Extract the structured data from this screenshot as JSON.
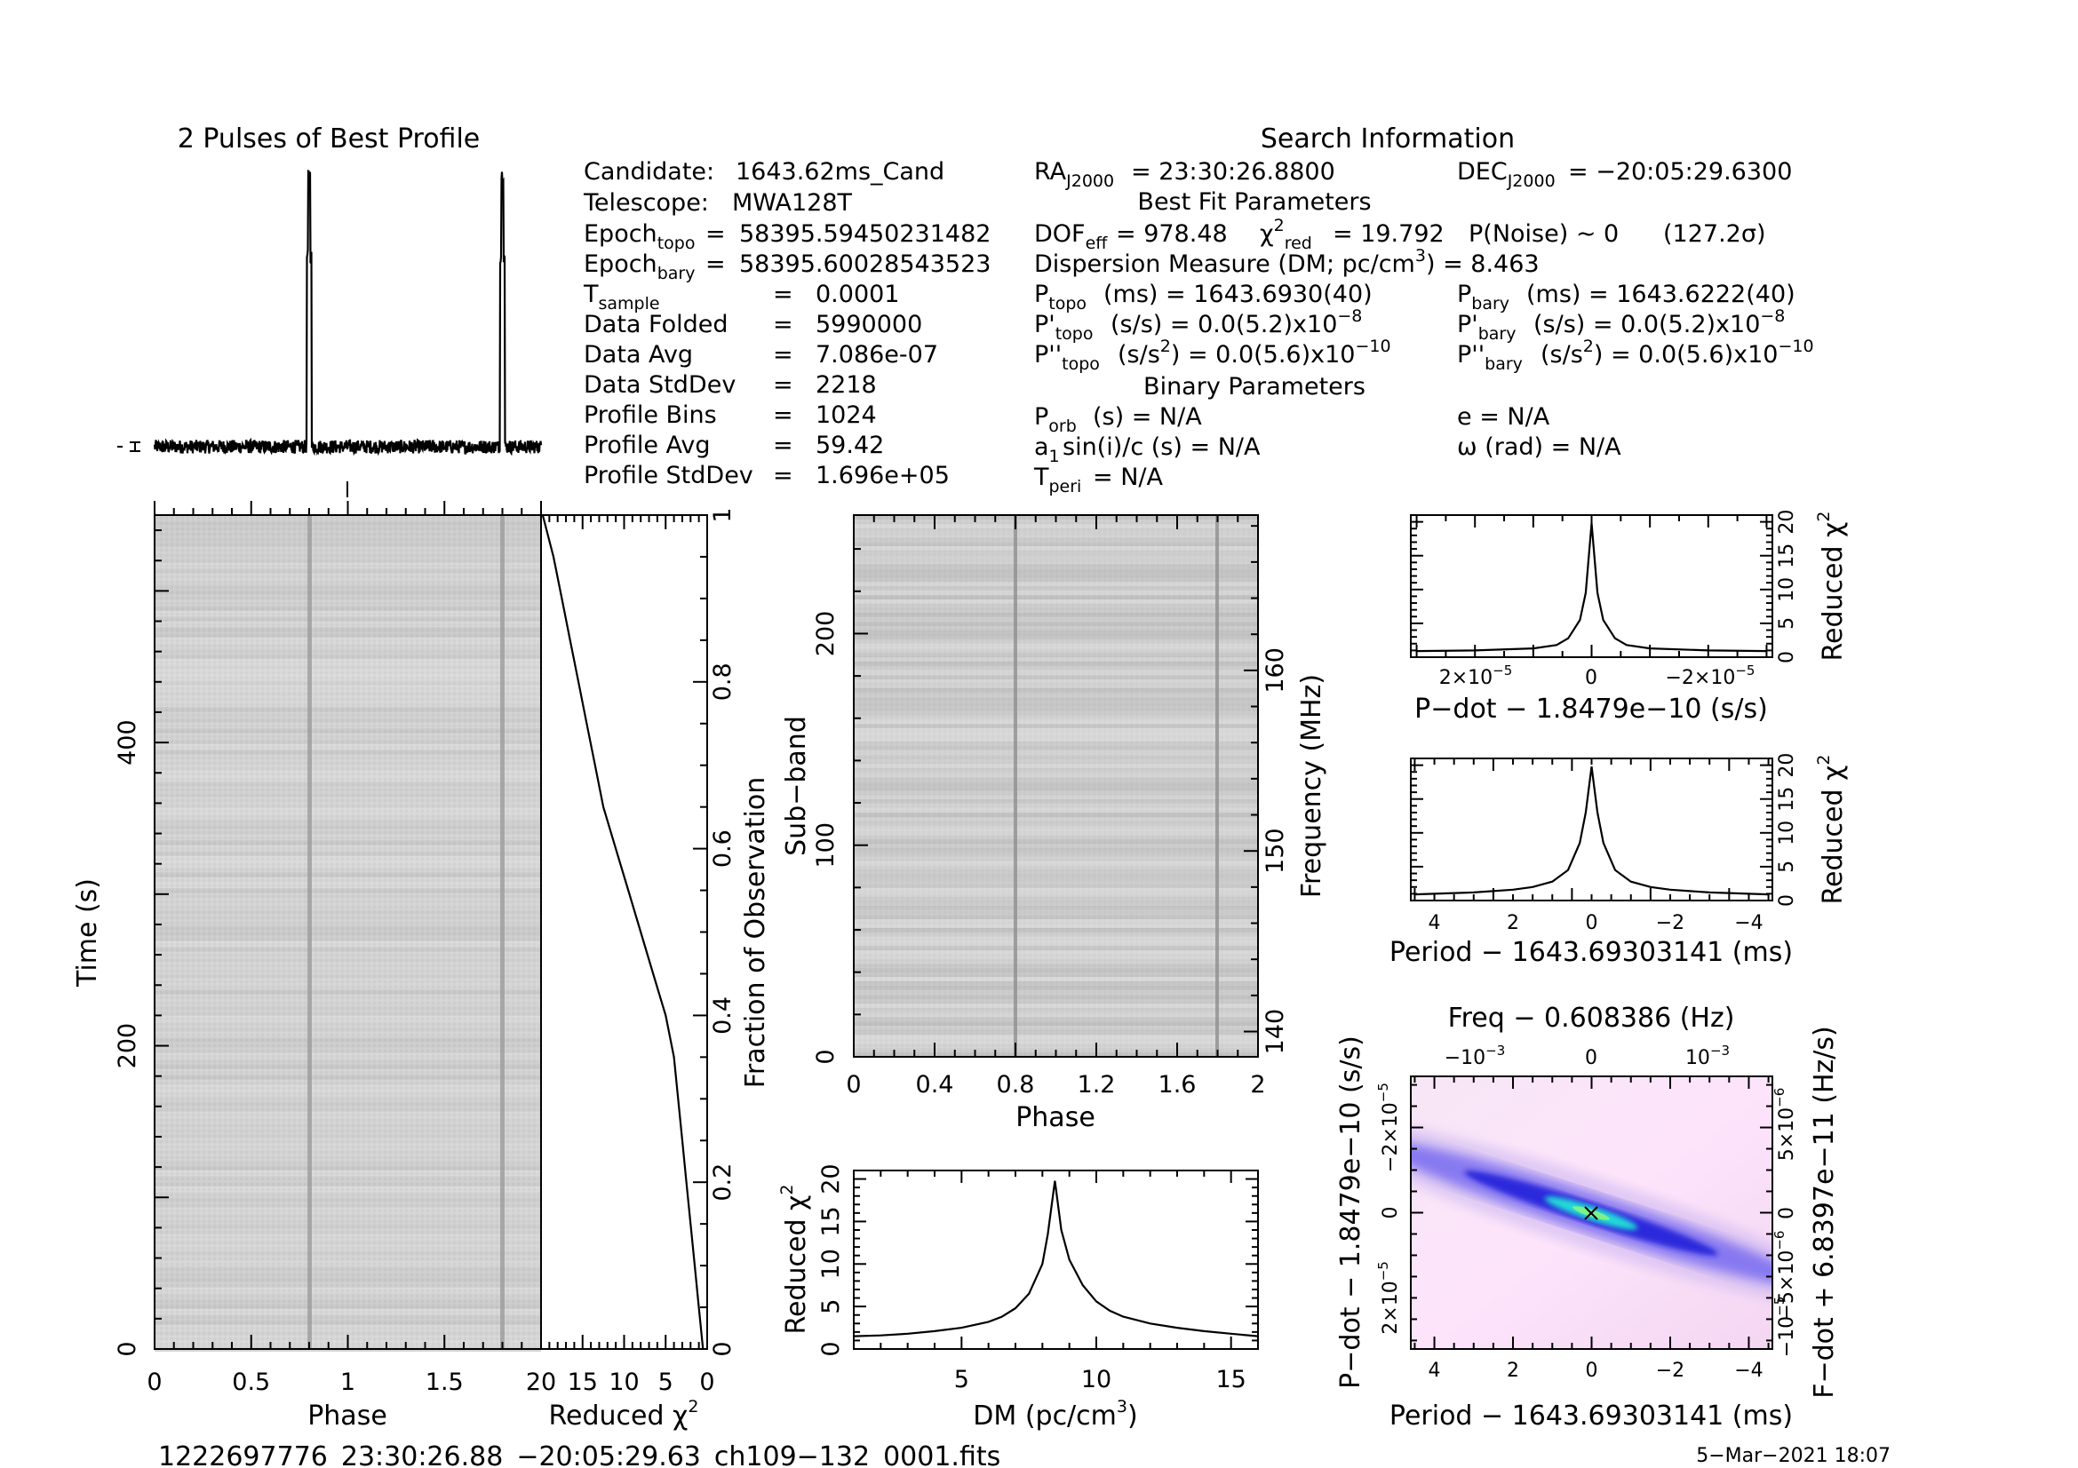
{
  "profile": {
    "title": "2 Pulses of Best Profile",
    "pulse_phases": [
      0.8,
      1.8
    ]
  },
  "search": {
    "title": "Search Information",
    "candidate_label": "Candidate:",
    "candidate": "1643.62ms_Cand",
    "telescope_label": "Telescope:",
    "telescope": "MWA128T",
    "epoch_topo": "58395.59450231482",
    "epoch_bary": "58395.60028543523",
    "rows": [
      {
        "label": "Data Folded",
        "value": "5990000"
      },
      {
        "label": "Data Avg",
        "value": "7.086e-07"
      },
      {
        "label": "Data StdDev",
        "value": "2218"
      },
      {
        "label": "Profile Bins",
        "value": "1024"
      },
      {
        "label": "Profile Avg",
        "value": "59.42"
      },
      {
        "label": "Profile StdDev",
        "value": "1.696e+05"
      }
    ],
    "t_sample": "0.0001",
    "eq": "=",
    "ra": "= 23:30:26.8800",
    "dec": "= −20:05:29.6300",
    "best_fit_title": "Best Fit Parameters",
    "dof": "= 978.48",
    "chi2_red": "= 19.792",
    "p_noise": "P(Noise) ~ 0",
    "sigma": "(127.2σ)",
    "dm_line": "Dispersion Measure (DM; pc/cm",
    "dm_value": ") = 8.463",
    "p_topo": "(ms) =  1643.6930(40)",
    "p_bary": "(ms) =  1643.6222(40)",
    "pd_topo": "(s/s) = 0.0(5.2)x10",
    "pd_bary": "(s/s) = 0.0(5.2)x10",
    "pd_exp": "−8",
    "pdd_topo_a": "(s/s",
    "pdd_topo_b": ") = 0.0(5.6)x10",
    "pdd_bary_a": "(s/s",
    "pdd_bary_b": ") = 0.0(5.6)x10",
    "pdd_exp": "−10",
    "binary_title": "Binary Parameters",
    "p_orb": "(s) = N/A",
    "a1": "sin(i)/c (s) = N/A",
    "t_peri": "= N/A",
    "e": "e = N/A",
    "omega": "ω (rad) = N/A"
  },
  "time_phase": {
    "xlabel": "Phase",
    "ylabel": "Time (s)",
    "xticks": [
      "0",
      "0.5",
      "1",
      "1.5"
    ],
    "yticks": [
      "0",
      "200",
      "400"
    ],
    "chi_xlabel": "Reduced χ",
    "chi_xticks": [
      "20",
      "15",
      "10",
      "5",
      "0"
    ],
    "frac_label": "Fraction of Observation",
    "frac_ticks": [
      "0",
      "0.2",
      "0.4",
      "0.6",
      "0.8",
      "1"
    ]
  },
  "subband": {
    "xlabel": "Phase",
    "ylabel": "Sub−band",
    "rlabel": "Frequency (MHz)",
    "xticks": [
      "0",
      "0.4",
      "0.8",
      "1.2",
      "1.6",
      "2"
    ],
    "yticks": [
      "0",
      "100",
      "200"
    ],
    "rticks": [
      "140",
      "150",
      "160"
    ]
  },
  "dm_plot": {
    "xlabel": "DM (pc/cm",
    "ylabel": "Reduced χ",
    "xticks": [
      "5",
      "10",
      "15"
    ],
    "yticks": [
      "0",
      "5",
      "10",
      "15",
      "20"
    ]
  },
  "pdot_plot": {
    "xlabel": "P−dot − 1.8479e−10 (s/s)",
    "ylabel": "Reduced χ",
    "xtick_l": "2×10",
    "xtick_c": "0",
    "xtick_r": "−2×10",
    "xtick_exp": "−5",
    "yticks": [
      "0",
      "5",
      "10",
      "15",
      "20"
    ]
  },
  "period_plot": {
    "xlabel": "Period − 1643.69303141 (ms)",
    "ylabel": "Reduced χ",
    "xticks": [
      "4",
      "2",
      "0",
      "−2",
      "−4"
    ],
    "yticks": [
      "0",
      "5",
      "10",
      "15",
      "20"
    ]
  },
  "pp_plot": {
    "top_label": "Freq − 0.608386 (Hz)",
    "top_ticks": [
      "−10",
      "0",
      "10"
    ],
    "top_exp": "−3",
    "xlabel": "Period − 1643.69303141 (ms)",
    "xticks": [
      "4",
      "2",
      "0",
      "−2",
      "−4"
    ],
    "ylabel": "P−dot − 1.8479e−10 (s/s)",
    "yticks_l": [
      "−2×10",
      "0",
      "2×10"
    ],
    "ytick_exp": "−5",
    "rlabel": "F−dot + 6.8397e−11 (Hz/s)",
    "rticks": [
      "5×10",
      "0",
      "−5×10",
      "−10"
    ],
    "rtick_exp": "−6",
    "rtick_exp2": "−5"
  },
  "footer": {
    "filename": "1222697776_23:30:26.88_−20:05:29.63_ch109−132_0001.fits",
    "date": "5−Mar−2021 18:07"
  },
  "chart_data": [
    {
      "type": "line",
      "title": "2 Pulses of Best Profile",
      "x": [
        0,
        0.25,
        0.5,
        0.75,
        0.8,
        0.85,
        1.0,
        1.25,
        1.5,
        1.75,
        1.8,
        1.85,
        2.0
      ],
      "y": [
        0.02,
        0.02,
        0.02,
        0.03,
        1.0,
        0.03,
        0.02,
        0.02,
        0.02,
        0.03,
        1.0,
        0.03,
        0.02
      ]
    },
    {
      "type": "heatmap",
      "xlabel": "Phase",
      "ylabel": "Time (s)",
      "xlim": [
        0,
        2
      ],
      "ylim": [
        0,
        550
      ]
    },
    {
      "type": "line",
      "xlabel": "Reduced χ2",
      "ylabel": "Fraction of Observation",
      "x": [
        0.5,
        1.0,
        1.5,
        2.0,
        2.5,
        3.0,
        3.5,
        4.0,
        5.0,
        6.5,
        8.0,
        9.5,
        11.0,
        12.5,
        13.5,
        14.5,
        15.5,
        16.5,
        17.5,
        18.5,
        19.792
      ],
      "y": [
        0.0,
        0.05,
        0.1,
        0.15,
        0.2,
        0.25,
        0.3,
        0.35,
        0.4,
        0.45,
        0.5,
        0.55,
        0.6,
        0.65,
        0.7,
        0.75,
        0.8,
        0.85,
        0.9,
        0.95,
        1.0
      ],
      "xlim": [
        20,
        0
      ],
      "ylim": [
        0,
        1
      ]
    },
    {
      "type": "heatmap",
      "xlabel": "Phase",
      "ylabel": "Sub−band",
      "xlim": [
        0,
        2
      ],
      "ylim": [
        0,
        256
      ],
      "ylabel_right": "Frequency (MHz)",
      "freq_lim": [
        138.6,
        168.6
      ]
    },
    {
      "type": "line",
      "xlabel": "DM (pc/cm3)",
      "ylabel": "Reduced χ2",
      "x": [
        1,
        2,
        3,
        4,
        5,
        6,
        6.5,
        7,
        7.5,
        8,
        8.2,
        8.463,
        8.7,
        9,
        9.5,
        10,
        10.5,
        11,
        12,
        13,
        14,
        15,
        16
      ],
      "y": [
        1.5,
        1.6,
        1.8,
        2.1,
        2.5,
        3.2,
        3.8,
        4.8,
        6.5,
        10,
        13.5,
        19.792,
        14,
        10.5,
        7.5,
        5.6,
        4.5,
        3.8,
        3.0,
        2.5,
        2.1,
        1.8,
        1.5
      ],
      "xlim": [
        1,
        16
      ],
      "ylim": [
        0,
        21
      ]
    },
    {
      "type": "line",
      "xlabel": "P−dot − 1.8479e−10 (s/s)",
      "ylabel": "Reduced χ2",
      "x": [
        3e-05,
        2e-05,
        1e-05,
        6e-06,
        4e-06,
        2e-06,
        1e-06,
        0,
        -1e-06,
        -2e-06,
        -4e-06,
        -6e-06,
        -1e-05,
        -2e-05,
        -3e-05
      ],
      "y": [
        0.9,
        1.0,
        1.3,
        1.8,
        2.8,
        5.5,
        9.5,
        19.792,
        9.5,
        5.5,
        2.8,
        1.8,
        1.3,
        1.0,
        0.9
      ],
      "xlim": [
        3.1e-05,
        -3.1e-05
      ],
      "ylim": [
        0,
        21
      ]
    },
    {
      "type": "line",
      "xlabel": "Period − 1643.69303141 (ms)",
      "ylabel": "Reduced χ2",
      "x": [
        4.5,
        4,
        3,
        2,
        1.5,
        1,
        0.6,
        0.3,
        0.15,
        0,
        -0.15,
        -0.3,
        -0.6,
        -1,
        -1.5,
        -2,
        -3,
        -4,
        -4.5
      ],
      "y": [
        0.9,
        1.0,
        1.2,
        1.6,
        2.0,
        2.8,
        4.5,
        8.5,
        13,
        19.792,
        13,
        8.5,
        4.5,
        2.8,
        2.0,
        1.6,
        1.2,
        1.0,
        0.9
      ],
      "xlim": [
        4.6,
        -4.6
      ],
      "ylim": [
        0,
        21
      ]
    },
    {
      "type": "heatmap",
      "xlabel": "Period − 1643.69303141 (ms)",
      "ylabel": "P−dot − 1.8479e−10 (s/s)",
      "xlim": [
        4.6,
        -4.6
      ],
      "ylim": [
        3.2e-05,
        -3.2e-05
      ],
      "top_xlabel": "Freq − 0.608386 (Hz)",
      "right_ylabel": "F−dot + 6.8397e−11 (Hz/s)"
    }
  ]
}
